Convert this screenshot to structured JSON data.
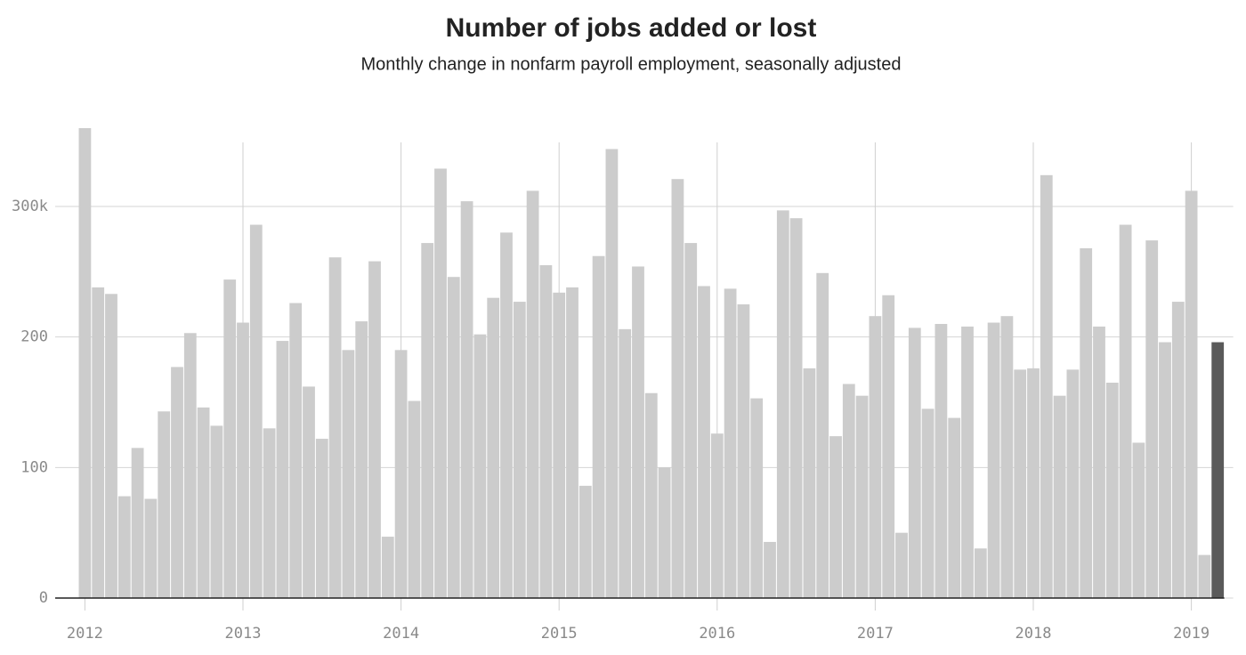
{
  "chart_data": {
    "type": "bar",
    "title": "Number of jobs added or lost",
    "subtitle": "Monthly change in nonfarm payroll employment, seasonally adjusted",
    "categories": [
      "2012",
      null,
      null,
      null,
      null,
      null,
      null,
      null,
      null,
      null,
      null,
      null,
      "2013",
      null,
      null,
      null,
      null,
      null,
      null,
      null,
      null,
      null,
      null,
      null,
      "2014",
      null,
      null,
      null,
      null,
      null,
      null,
      null,
      null,
      null,
      null,
      null,
      "2015",
      null,
      null,
      null,
      null,
      null,
      null,
      null,
      null,
      null,
      null,
      null,
      "2016",
      null,
      null,
      null,
      null,
      null,
      null,
      null,
      null,
      null,
      null,
      null,
      "2017",
      null,
      null,
      null,
      null,
      null,
      null,
      null,
      null,
      null,
      null,
      null,
      "2018",
      null,
      null,
      null,
      null,
      null,
      null,
      null,
      null,
      null,
      null,
      null,
      "2019",
      null,
      null
    ],
    "values": [
      360,
      238,
      233,
      78,
      115,
      76,
      143,
      177,
      203,
      146,
      132,
      244,
      211,
      286,
      130,
      197,
      226,
      162,
      122,
      261,
      190,
      212,
      258,
      47,
      190,
      151,
      272,
      329,
      246,
      304,
      202,
      230,
      280,
      227,
      312,
      255,
      234,
      238,
      86,
      262,
      344,
      206,
      254,
      157,
      100,
      321,
      272,
      239,
      126,
      237,
      225,
      153,
      43,
      297,
      291,
      176,
      249,
      124,
      164,
      155,
      216,
      232,
      50,
      207,
      145,
      210,
      138,
      208,
      38,
      211,
      216,
      175,
      176,
      324,
      155,
      175,
      268,
      208,
      165,
      286,
      119,
      274,
      196,
      227,
      312,
      33,
      196
    ],
    "colors": [
      "#cccccc",
      "#cccccc",
      "#cccccc",
      "#cccccc",
      "#cccccc",
      "#cccccc",
      "#cccccc",
      "#cccccc",
      "#cccccc",
      "#cccccc",
      "#cccccc",
      "#cccccc",
      "#cccccc",
      "#cccccc",
      "#cccccc",
      "#cccccc",
      "#cccccc",
      "#cccccc",
      "#cccccc",
      "#cccccc",
      "#cccccc",
      "#cccccc",
      "#cccccc",
      "#cccccc",
      "#cccccc",
      "#cccccc",
      "#cccccc",
      "#cccccc",
      "#cccccc",
      "#cccccc",
      "#cccccc",
      "#cccccc",
      "#cccccc",
      "#cccccc",
      "#cccccc",
      "#cccccc",
      "#cccccc",
      "#cccccc",
      "#cccccc",
      "#cccccc",
      "#cccccc",
      "#cccccc",
      "#cccccc",
      "#cccccc",
      "#cccccc",
      "#cccccc",
      "#cccccc",
      "#cccccc",
      "#cccccc",
      "#cccccc",
      "#cccccc",
      "#cccccc",
      "#cccccc",
      "#cccccc",
      "#cccccc",
      "#cccccc",
      "#cccccc",
      "#cccccc",
      "#cccccc",
      "#cccccc",
      "#cccccc",
      "#cccccc",
      "#cccccc",
      "#cccccc",
      "#cccccc",
      "#cccccc",
      "#cccccc",
      "#cccccc",
      "#cccccc",
      "#cccccc",
      "#cccccc",
      "#cccccc",
      "#cccccc",
      "#cccccc",
      "#cccccc",
      "#cccccc",
      "#cccccc",
      "#cccccc",
      "#cccccc",
      "#cccccc",
      "#cccccc",
      "#cccccc",
      "#cccccc",
      "#cccccc",
      "#cccccc",
      "#cccccc",
      "#5a5a5a"
    ],
    "ylim": [
      0,
      360
    ],
    "yticks": [
      0,
      100,
      200,
      {
        "value": 300,
        "label": "300k"
      }
    ],
    "grid": true
  }
}
